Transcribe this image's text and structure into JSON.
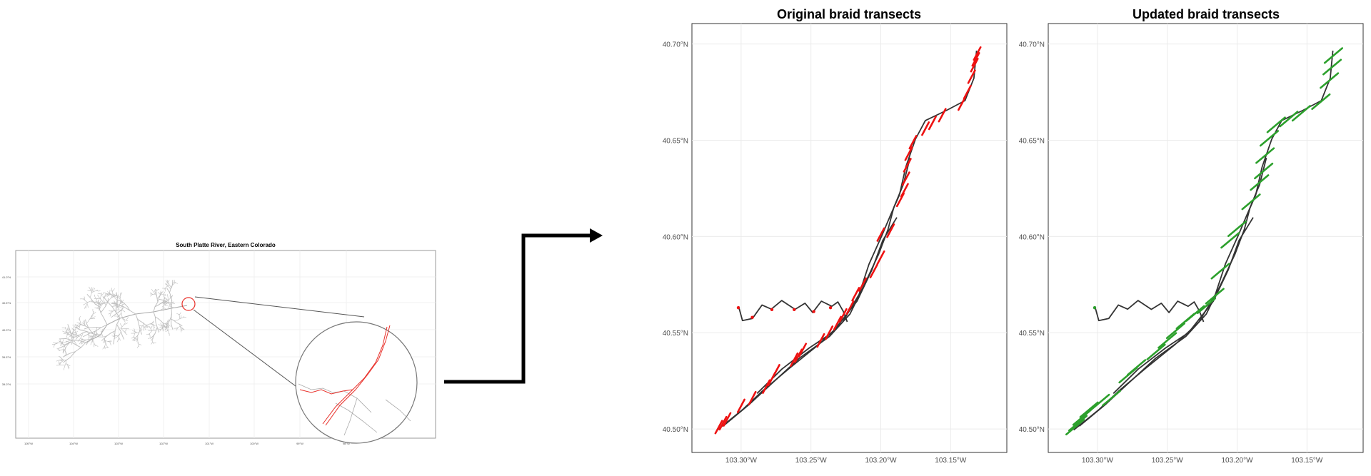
{
  "overview_map": {
    "title": "South Platte River, Eastern Colorado",
    "lat_labels": [
      "41.0°N",
      "40.5°N",
      "40.0°N",
      "39.5°N",
      "39.0°N"
    ],
    "lon_labels": [
      "105°W",
      "104°W",
      "103°W",
      "102°W",
      "101°W",
      "100°W",
      "99°W",
      "98°W"
    ],
    "inset_color": "#e8302a",
    "network_color": "#bdbdbd"
  },
  "panels": [
    {
      "id": "original",
      "title": "Original braid transects",
      "transect_color": "#ee1111",
      "lat_labels": [
        "40.70°N",
        "40.65°N",
        "40.60°N",
        "40.55°N",
        "40.50°N"
      ],
      "lon_labels": [
        "103.30°W",
        "103.25°W",
        "103.20°W",
        "103.15°W"
      ]
    },
    {
      "id": "updated",
      "title": "Updated braid transects",
      "transect_color": "#2ca02c",
      "lat_labels": [
        "40.70°N",
        "40.65°N",
        "40.60°N",
        "40.55°N",
        "40.50°N"
      ],
      "lon_labels": [
        "103.30°W",
        "103.25°W",
        "103.20°W",
        "103.15°W"
      ]
    }
  ],
  "colors": {
    "river": "#333333",
    "grid": "#ebebeb",
    "frame": "#333333",
    "arrow": "#000000"
  }
}
